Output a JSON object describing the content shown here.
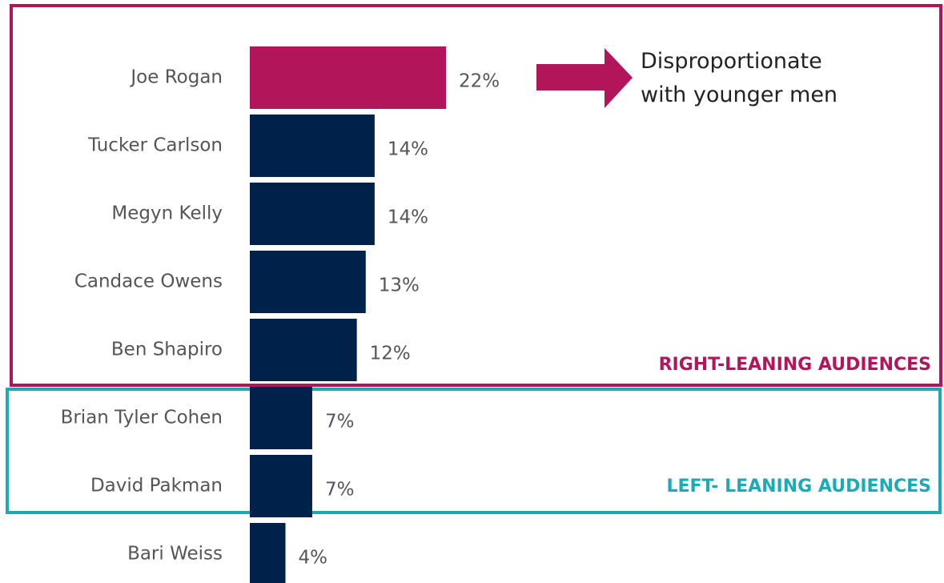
{
  "chart_data": {
    "type": "barh",
    "categories": [
      "Joe Rogan",
      "Tucker Carlson",
      "Megyn Kelly",
      "Candace Owens",
      "Ben Shapiro",
      "Brian Tyler Cohen",
      "David Pakman",
      "Bari Weiss"
    ],
    "values": [
      22,
      14,
      14,
      13,
      12,
      7,
      7,
      4
    ],
    "value_labels": [
      "22%",
      "14%",
      "14%",
      "13%",
      "12%",
      "7%",
      "7%",
      "4%"
    ],
    "colors": [
      "#b3155b",
      "#00214a",
      "#00214a",
      "#00214a",
      "#00214a",
      "#00214a",
      "#00214a",
      "#00214a"
    ],
    "annotation": "Disproportionate with younger men",
    "annotation_color": "#b3155b",
    "groups": [
      {
        "name": "RIGHT-LEANING AUDIENCES",
        "color": "#b3155b"
      },
      {
        "name": "LEFT- LEANING AUDIENCES",
        "color": "#1aabb5"
      }
    ]
  }
}
